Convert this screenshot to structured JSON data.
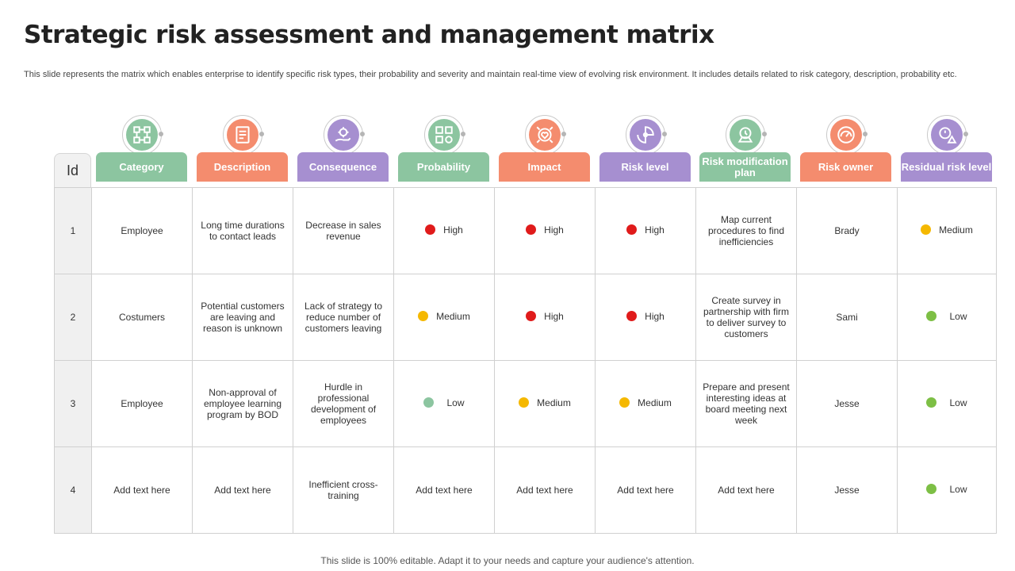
{
  "title": "Strategic risk assessment and management matrix",
  "subtitle": "This slide represents the matrix which enables enterprise to identify specific risk types, their probability and severity and maintain real-time view of evolving risk environment. It includes details related to risk category, description, probability etc.",
  "id_header": "Id",
  "headers": [
    {
      "label": "Category",
      "color": "#8cc5a0",
      "icon": "flowchart-icon"
    },
    {
      "label": "Description",
      "color": "#f48c6e",
      "icon": "document-icon"
    },
    {
      "label": "Consequence",
      "color": "#a68fd0",
      "icon": "hand-gear-icon"
    },
    {
      "label": "Probability",
      "color": "#8cc5a0",
      "icon": "question-blocks-icon"
    },
    {
      "label": "Impact",
      "color": "#f48c6e",
      "icon": "target-heart-icon"
    },
    {
      "label": "Risk level",
      "color": "#a68fd0",
      "icon": "gauge-icon"
    },
    {
      "label": "Risk modification plan",
      "color": "#8cc5a0",
      "icon": "gear-warning-icon"
    },
    {
      "label": "Risk owner",
      "color": "#f48c6e",
      "icon": "risk-meter-icon"
    },
    {
      "label": "Residual risk level",
      "color": "#a68fd0",
      "icon": "warning-gear-icon"
    }
  ],
  "status_colors": {
    "High": "#e01b1b",
    "Medium": "#f5b800",
    "Low": "#7dbf45",
    "LowMuted": "#8cc5a0"
  },
  "rows": [
    {
      "id": "1",
      "category": "Employee",
      "description": "Long time durations to contact leads",
      "consequence": "Decrease in sales revenue",
      "probability": "High",
      "impact": "High",
      "risk_level": "High",
      "plan": "Map current procedures to find inefficiencies",
      "owner": "Brady",
      "residual": "Medium"
    },
    {
      "id": "2",
      "category": "Costumers",
      "description": "Potential customers are leaving and reason is unknown",
      "consequence": "Lack of strategy to reduce number of customers leaving",
      "probability": "Medium",
      "impact": "High",
      "risk_level": "High",
      "plan": "Create survey in partnership with firm to deliver survey to customers",
      "owner": "Sami",
      "residual": "Low"
    },
    {
      "id": "3",
      "category": "Employee",
      "description": "Non-approval of employee learning program by BOD",
      "consequence": "Hurdle in professional development of employees",
      "probability": "Low",
      "impact": "Medium",
      "risk_level": "Medium",
      "plan": "Prepare and present interesting ideas at board meeting next week",
      "owner": "Jesse",
      "residual": "Low"
    },
    {
      "id": "4",
      "category": "Add text here",
      "description": "Add text here",
      "consequence": "Inefficient cross-training",
      "probability": "Add text here",
      "impact": "Add text here",
      "risk_level": "Add text here",
      "plan": "Add text here",
      "owner": "Jesse",
      "residual": "Low"
    }
  ],
  "footer": "This slide is 100% editable. Adapt it to your needs and capture your audience's attention."
}
